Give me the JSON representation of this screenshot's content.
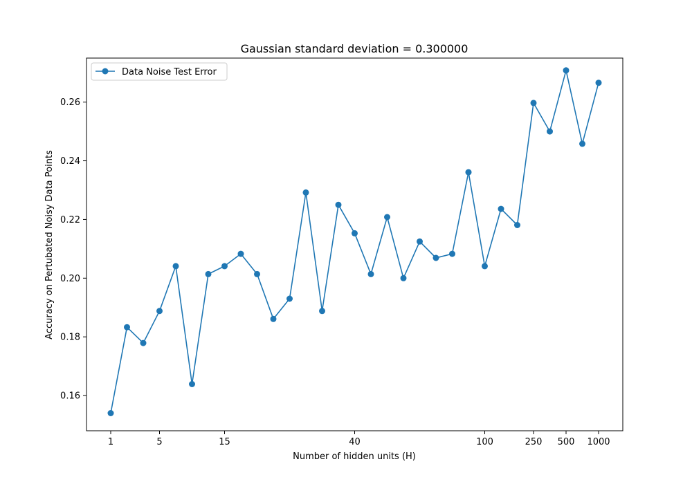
{
  "chart_data": {
    "type": "line",
    "title": "Gaussian standard deviation = 0.300000",
    "xlabel": "Number of hidden units (H)",
    "ylabel": "Accuracy on Pertubated Noisy Data Points",
    "x_scale": "categorical",
    "x_tick_labels": [
      "1",
      "5",
      "15",
      "40",
      "100",
      "250",
      "500",
      "1000"
    ],
    "ylim": [
      0.148,
      0.275
    ],
    "y_ticks": [
      0.16,
      0.18,
      0.2,
      0.22,
      0.24,
      0.26
    ],
    "y_tick_labels": [
      "0.16",
      "0.18",
      "0.20",
      "0.22",
      "0.24",
      "0.26"
    ],
    "grid": false,
    "legend_position": "top-left",
    "series": [
      {
        "name": "Data Noise Test Error",
        "color": "#1f77b4",
        "marker": "circle",
        "points": [
          {
            "x": "1",
            "y": 0.154
          },
          {
            "x": "",
            "y": 0.1833
          },
          {
            "x": "",
            "y": 0.1779
          },
          {
            "x": "5",
            "y": 0.1888
          },
          {
            "x": "",
            "y": 0.2041
          },
          {
            "x": "",
            "y": 0.1639
          },
          {
            "x": "",
            "y": 0.2014
          },
          {
            "x": "15",
            "y": 0.2041
          },
          {
            "x": "",
            "y": 0.2083
          },
          {
            "x": "",
            "y": 0.2014
          },
          {
            "x": "",
            "y": 0.1861
          },
          {
            "x": "",
            "y": 0.193
          },
          {
            "x": "",
            "y": 0.2292
          },
          {
            "x": "",
            "y": 0.1888
          },
          {
            "x": "",
            "y": 0.225
          },
          {
            "x": "40",
            "y": 0.2153
          },
          {
            "x": "",
            "y": 0.2014
          },
          {
            "x": "",
            "y": 0.2208
          },
          {
            "x": "",
            "y": 0.2
          },
          {
            "x": "",
            "y": 0.2125
          },
          {
            "x": "",
            "y": 0.2069
          },
          {
            "x": "",
            "y": 0.2083
          },
          {
            "x": "",
            "y": 0.2361
          },
          {
            "x": "100",
            "y": 0.2041
          },
          {
            "x": "",
            "y": 0.2236
          },
          {
            "x": "",
            "y": 0.2181
          },
          {
            "x": "250",
            "y": 0.2597
          },
          {
            "x": "",
            "y": 0.25
          },
          {
            "x": "500",
            "y": 0.2708
          },
          {
            "x": "",
            "y": 0.2458
          },
          {
            "x": "1000",
            "y": 0.2666
          }
        ]
      }
    ]
  }
}
